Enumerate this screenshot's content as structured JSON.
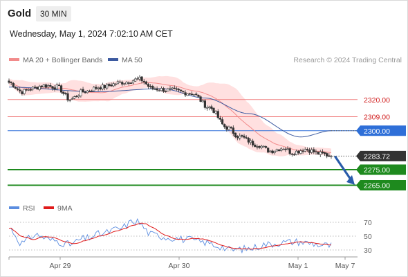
{
  "header": {
    "instrument": "Gold",
    "timeframe": "30 MIN",
    "datetime": "Wednesday, May 1, 2024 7:02:10 AM CET"
  },
  "copyright": "Research © 2024 Trading Central",
  "colors": {
    "bollinger": "#ffd6d6",
    "ma20": "#f28b8b",
    "ma50": "#3c5aa0",
    "resistance": "#f08080",
    "pivot": "#2e6fd8",
    "support": "#1e8a1e",
    "current": "#333333",
    "arrow": "#2a5caa",
    "candle_up": "#ffffff",
    "candle_down": "#333333",
    "rsi": "#5b8de0",
    "rsi_ma": "#e01b1b"
  },
  "chart_data": [
    {
      "type": "candlestick",
      "legend": [
        {
          "key": "ma20",
          "label": "MA 20 + Bollinger Bands"
        },
        {
          "key": "ma50",
          "label": "MA 50"
        }
      ],
      "x_ticks": [
        "Apr 29",
        "Apr 30",
        "May 1",
        "May 7"
      ],
      "ylim": [
        2259,
        2339
      ],
      "levels": [
        {
          "kind": "resistance",
          "value": 2320.0,
          "label": "2320.00"
        },
        {
          "kind": "resistance",
          "value": 2309.0,
          "label": "2309.00"
        },
        {
          "kind": "pivot",
          "value": 2300.0,
          "label": "2300.00"
        },
        {
          "kind": "current",
          "value": 2283.72,
          "label": "2283.72"
        },
        {
          "kind": "support",
          "value": 2275.0,
          "label": "2275.00"
        },
        {
          "kind": "support",
          "value": 2265.0,
          "label": "2265.00"
        }
      ],
      "close_anchors": [
        [
          0,
          2331
        ],
        [
          6,
          2325
        ],
        [
          10,
          2327
        ],
        [
          16,
          2329
        ],
        [
          22,
          2328
        ],
        [
          28,
          2320
        ],
        [
          34,
          2325
        ],
        [
          42,
          2328
        ],
        [
          52,
          2331
        ],
        [
          60,
          2333
        ],
        [
          66,
          2327
        ],
        [
          74,
          2326
        ],
        [
          84,
          2324
        ],
        [
          92,
          2315
        ],
        [
          100,
          2302
        ],
        [
          106,
          2296
        ],
        [
          114,
          2291
        ],
        [
          120,
          2287
        ],
        [
          126,
          2289
        ],
        [
          130,
          2286
        ],
        [
          136,
          2288
        ],
        [
          144,
          2285
        ],
        [
          148,
          2283.72
        ]
      ],
      "ma50_anchors": [
        [
          0,
          2328
        ],
        [
          40,
          2325
        ],
        [
          70,
          2327
        ],
        [
          90,
          2321
        ],
        [
          110,
          2311
        ],
        [
          134,
          2296
        ],
        [
          148,
          2300
        ]
      ]
    },
    {
      "type": "line",
      "legend": [
        {
          "key": "rsi",
          "label": "RSI"
        },
        {
          "key": "rsi_ma",
          "label": "9MA"
        }
      ],
      "ylim": [
        20,
        80
      ],
      "y_ticks": [
        70,
        50,
        30
      ],
      "rsi_anchors": [
        [
          0,
          62
        ],
        [
          6,
          40
        ],
        [
          12,
          52
        ],
        [
          20,
          44
        ],
        [
          28,
          38
        ],
        [
          34,
          46
        ],
        [
          42,
          53
        ],
        [
          50,
          60
        ],
        [
          58,
          72
        ],
        [
          66,
          52
        ],
        [
          74,
          48
        ],
        [
          82,
          45
        ],
        [
          90,
          41
        ],
        [
          96,
          36
        ],
        [
          102,
          30
        ],
        [
          110,
          32
        ],
        [
          118,
          38
        ],
        [
          126,
          41
        ],
        [
          132,
          42
        ],
        [
          138,
          40
        ],
        [
          144,
          37
        ],
        [
          148,
          36
        ]
      ]
    }
  ]
}
